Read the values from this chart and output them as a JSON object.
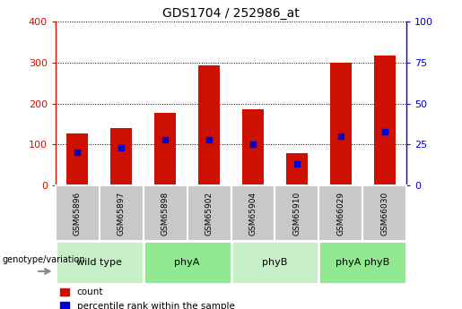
{
  "title": "GDS1704 / 252986_at",
  "samples": [
    "GSM65896",
    "GSM65897",
    "GSM65898",
    "GSM65902",
    "GSM65904",
    "GSM65910",
    "GSM66029",
    "GSM66030"
  ],
  "counts": [
    127,
    140,
    177,
    293,
    185,
    78,
    300,
    318
  ],
  "percentile_ranks": [
    20,
    23,
    28,
    28,
    25,
    13,
    30,
    33
  ],
  "groups": [
    {
      "label": "wild type",
      "span": [
        0,
        2
      ],
      "color": "#c8f0c8"
    },
    {
      "label": "phyA",
      "span": [
        2,
        4
      ],
      "color": "#90e890"
    },
    {
      "label": "phyB",
      "span": [
        4,
        6
      ],
      "color": "#c8f0c8"
    },
    {
      "label": "phyA phyB",
      "span": [
        6,
        8
      ],
      "color": "#90e890"
    }
  ],
  "bar_color": "#cc1100",
  "marker_color": "#0000cc",
  "ylim_left": [
    0,
    400
  ],
  "ylim_right": [
    0,
    100
  ],
  "yticks_left": [
    0,
    100,
    200,
    300,
    400
  ],
  "yticks_right": [
    0,
    25,
    50,
    75,
    100
  ],
  "legend_count_label": "count",
  "legend_pct_label": "percentile rank within the sample",
  "genotype_label": "genotype/variation",
  "bar_width": 0.5,
  "tick_label_color_left": "#cc1100",
  "tick_label_color_right": "#0000cc",
  "sample_box_color": "#c8c8c8",
  "fig_width": 5.15,
  "fig_height": 3.45,
  "fig_dpi": 100
}
